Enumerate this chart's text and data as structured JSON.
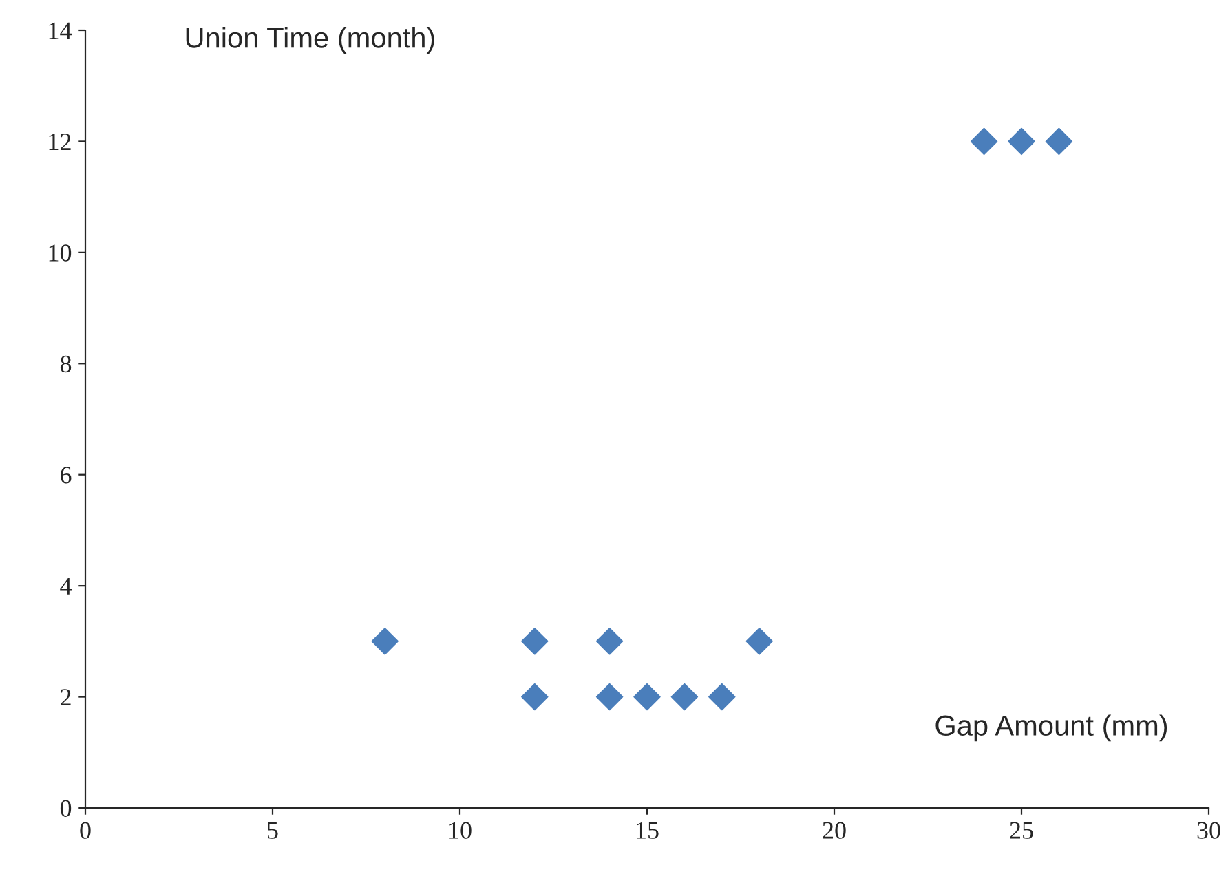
{
  "chart_data": {
    "type": "scatter",
    "xlabel": "Gap Amount (mm)",
    "ylabel": "Union Time (month)",
    "x": [
      8,
      12,
      12,
      14,
      14,
      15,
      16,
      17,
      18,
      24,
      25,
      26
    ],
    "values": [
      3,
      3,
      2,
      3,
      2,
      2,
      2,
      2,
      3,
      12,
      12,
      12
    ],
    "color": "#4a7ebb",
    "marker": "diamond",
    "xlim": [
      0,
      30
    ],
    "xticks": [
      0,
      5,
      10,
      15,
      20,
      25,
      30
    ],
    "ylim": [
      0,
      14
    ],
    "yticks": [
      0,
      2,
      4,
      6,
      8,
      10,
      12,
      14
    ],
    "grid": false
  }
}
